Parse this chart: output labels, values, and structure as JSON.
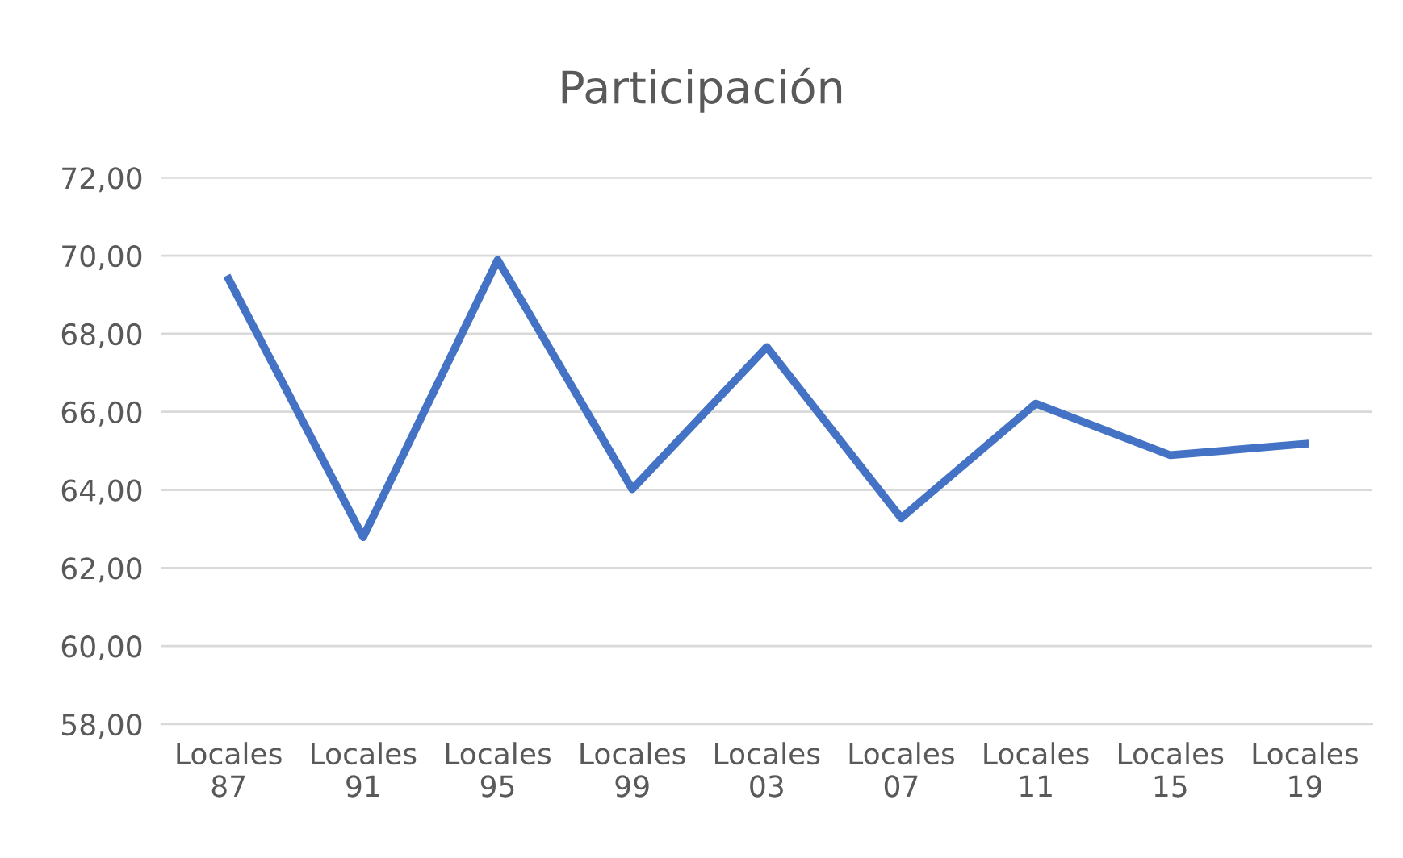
{
  "chart_data": {
    "type": "line",
    "title": "Participación",
    "categories": [
      "Locales\n87",
      "Locales\n91",
      "Locales\n95",
      "Locales\n99",
      "Locales\n03",
      "Locales\n07",
      "Locales\n11",
      "Locales\n15",
      "Locales\n19"
    ],
    "series": [
      {
        "color": "#4472c4",
        "values": [
          69.4,
          62.79,
          69.89,
          64.02,
          67.66,
          63.28,
          66.21,
          64.89,
          65.18
        ]
      }
    ],
    "ylim": [
      58,
      72
    ],
    "yticks": [
      {
        "value": 58,
        "label": "58,00"
      },
      {
        "value": 60,
        "label": "60,00"
      },
      {
        "value": 62,
        "label": "62,00"
      },
      {
        "value": 64,
        "label": "64,00"
      },
      {
        "value": 66,
        "label": "66,00"
      },
      {
        "value": 68,
        "label": "68,00"
      },
      {
        "value": 70,
        "label": "70,00"
      },
      {
        "value": 72,
        "label": "72,00"
      }
    ],
    "grid": "y",
    "legend": false,
    "marker": "none",
    "line_style": "solid"
  }
}
